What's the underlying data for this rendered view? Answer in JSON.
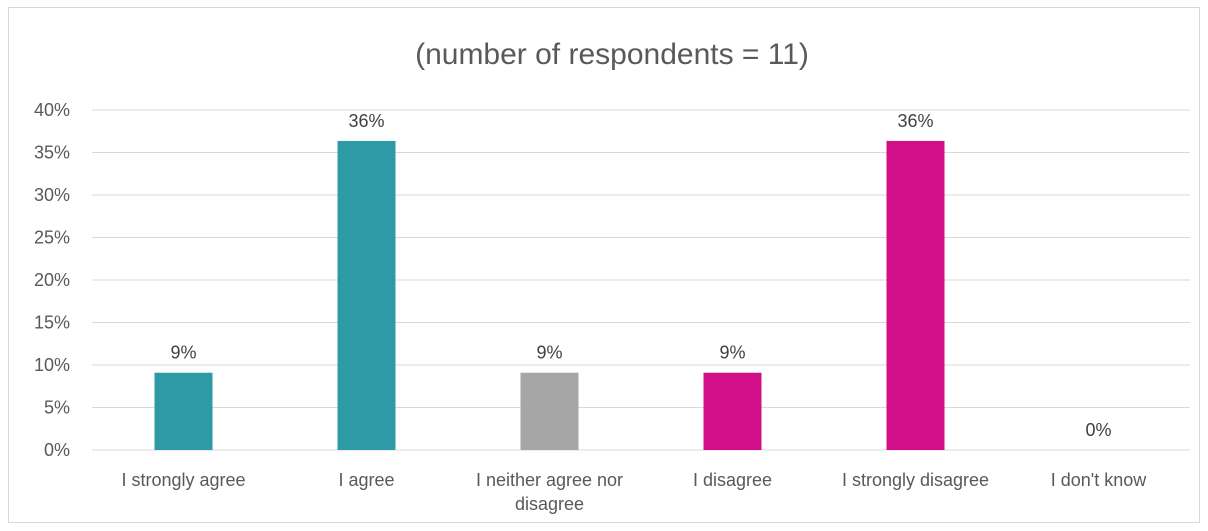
{
  "chart_data": {
    "type": "bar",
    "title": "(number of respondents = 11)",
    "xlabel": "",
    "ylabel": "",
    "categories": [
      "I strongly agree",
      "I agree",
      "I neither agree nor disagree",
      "I disagree",
      "I strongly disagree",
      "I don't know"
    ],
    "category_lines": [
      [
        "I strongly agree"
      ],
      [
        "I agree"
      ],
      [
        "I neither agree nor",
        "disagree"
      ],
      [
        "I disagree"
      ],
      [
        "I strongly disagree"
      ],
      [
        "I don't know"
      ]
    ],
    "values": [
      9.09,
      36.36,
      9.09,
      9.09,
      36.36,
      0
    ],
    "data_labels": [
      "9%",
      "36%",
      "9%",
      "9%",
      "36%",
      "0%"
    ],
    "bar_colors": [
      "#2E9AA6",
      "#2E9AA6",
      "#A6A6A6",
      "#D10F86",
      "#D10F86",
      "#D10F86"
    ],
    "ylim": [
      0,
      40
    ],
    "yticks": [
      0,
      5,
      10,
      15,
      20,
      25,
      30,
      35,
      40
    ],
    "ytick_labels": [
      "0%",
      "5%",
      "10%",
      "15%",
      "20%",
      "25%",
      "30%",
      "35%",
      "40%"
    ],
    "grid": true,
    "legend": "none"
  }
}
